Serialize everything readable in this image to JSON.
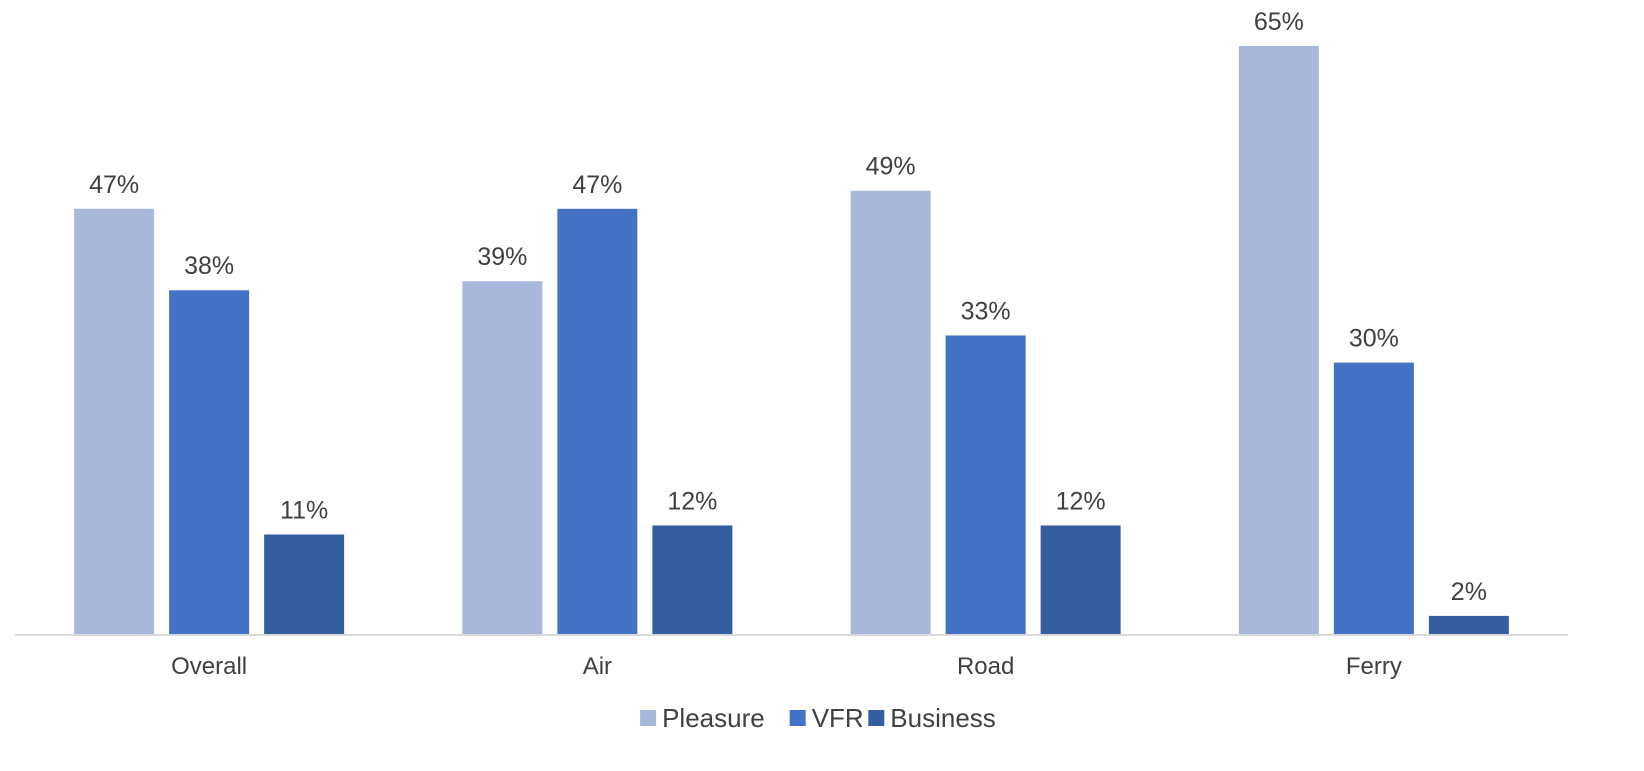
{
  "chart_data": {
    "type": "bar",
    "categories": [
      "Overall",
      "Air",
      "Road",
      "Ferry"
    ],
    "series": [
      {
        "name": "Pleasure",
        "values": [
          47,
          39,
          49,
          65
        ],
        "color": "#a9b7db"
      },
      {
        "name": "VFR",
        "values": [
          38,
          47,
          33,
          30
        ],
        "color": "#4472c4"
      },
      {
        "name": "Business",
        "values": [
          11,
          12,
          12,
          2
        ],
        "color": "#355ea0"
      }
    ],
    "value_suffix": "%",
    "ylim": [
      0,
      65
    ],
    "grid": false,
    "legend_position": "bottom",
    "title": "",
    "xlabel": "",
    "ylabel": ""
  }
}
